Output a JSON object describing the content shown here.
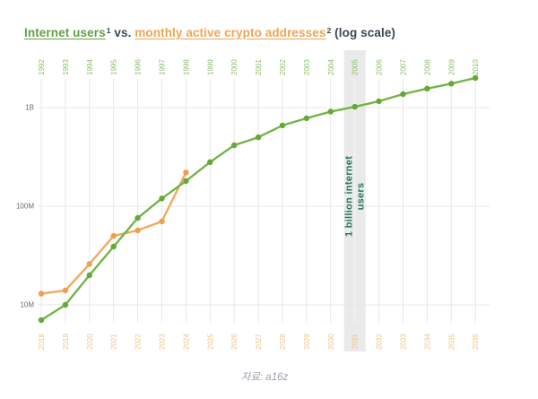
{
  "title": {
    "internet_users": "Internet users",
    "internet_users_sup": "1",
    "vs": " vs. ",
    "crypto_addresses": "monthly active crypto addresses",
    "crypto_addresses_sup": "2",
    "suffix": " (log scale)"
  },
  "annotation": {
    "line1": "1 billion internet",
    "line2": "users",
    "highlighted_top_year": "2005",
    "highlighted_bottom_year": "2031"
  },
  "footer": {
    "text": "자료: a16z"
  },
  "colors": {
    "green_line": "#74b448",
    "green_marker": "#64a93a",
    "orange_line": "#f0a961",
    "orange_marker": "#eda04f",
    "title_green": "#61a144",
    "title_orange": "#f0a455",
    "title_dark": "#3c4656",
    "top_tick": "#8cbd6a",
    "bottom_tick": "#eec48e",
    "y_tick": "#6b6b6b",
    "grid": "#e7e7e7",
    "grid_on_band": "#f7f7f7",
    "band_fill": "#eaeaea",
    "band_text": "#26785a",
    "footer_text": "#9aa1ab"
  },
  "chart_data": {
    "type": "line",
    "log_scale": true,
    "title": "Internet users vs. monthly active crypto addresses (log scale)",
    "legend_position": "none",
    "grid": true,
    "y_ticks": [
      "1B",
      "100M",
      "10M"
    ],
    "y_tick_values": [
      1000000000,
      100000000,
      10000000
    ],
    "ylim": [
      6000000,
      2400000000
    ],
    "top_axis_ticks": [
      "1992",
      "1993",
      "1994",
      "1995",
      "1996",
      "1997",
      "1998",
      "1999",
      "2000",
      "2001",
      "2002",
      "2003",
      "2004",
      "2005",
      "2006",
      "2007",
      "2008",
      "2009",
      "2010"
    ],
    "bottom_axis_ticks": [
      "2018",
      "2019",
      "2020",
      "2021",
      "2022",
      "2023",
      "2024",
      "2025",
      "2026",
      "2027",
      "2028",
      "2029",
      "2030",
      "2031",
      "2032",
      "2033",
      "2034",
      "2035",
      "2036"
    ],
    "highlight_index": 13,
    "series": [
      {
        "name": "Internet users",
        "axis": "top",
        "color": "#74b448",
        "marker_color": "#64a93a",
        "x": [
          "1992",
          "1993",
          "1994",
          "1995",
          "1996",
          "1997",
          "1998",
          "1999",
          "2000",
          "2001",
          "2002",
          "2003",
          "2004",
          "2005",
          "2006",
          "2007",
          "2008",
          "2009",
          "2010"
        ],
        "values": [
          7000000,
          10000000,
          20000000,
          39000000,
          76000000,
          120000000,
          180000000,
          280000000,
          415000000,
          500000000,
          660000000,
          780000000,
          910000000,
          1020000000,
          1160000000,
          1370000000,
          1560000000,
          1750000000,
          2000000000
        ]
      },
      {
        "name": "Monthly active crypto addresses",
        "axis": "bottom",
        "color": "#f0a961",
        "marker_color": "#eda04f",
        "x": [
          "2018",
          "2019",
          "2020",
          "2021",
          "2022",
          "2023",
          "2024"
        ],
        "values": [
          13000000,
          14000000,
          26000000,
          50000000,
          57000000,
          70000000,
          220000000
        ]
      }
    ]
  }
}
